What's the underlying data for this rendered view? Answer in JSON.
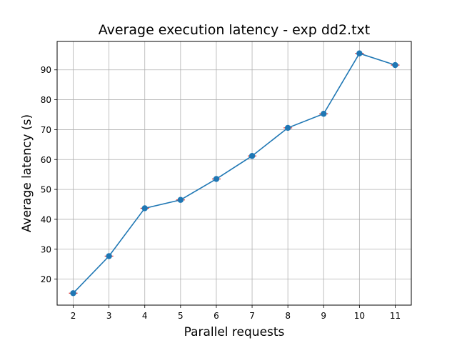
{
  "chart_data": {
    "type": "line",
    "title": "Average execution latency - exp dd2.txt",
    "xlabel": "Parallel requests",
    "ylabel": "Average latency (s)",
    "x": [
      2,
      3,
      4,
      5,
      6,
      7,
      8,
      9,
      10,
      11
    ],
    "series": [
      {
        "values": [
          15.3,
          27.7,
          43.7,
          46.5,
          53.5,
          61.2,
          70.6,
          75.3,
          95.5,
          91.6
        ]
      }
    ],
    "xlim": [
      1.55,
      11.45
    ],
    "ylim": [
      11.3,
      99.5
    ],
    "xticks": [
      2,
      3,
      4,
      5,
      6,
      7,
      8,
      9,
      10,
      11
    ],
    "yticks": [
      20,
      30,
      40,
      50,
      60,
      70,
      80,
      90
    ],
    "grid": true,
    "line_color": "#1f77b4",
    "marker_color": "#1f77b4",
    "errorbar_color": "#d62728"
  }
}
